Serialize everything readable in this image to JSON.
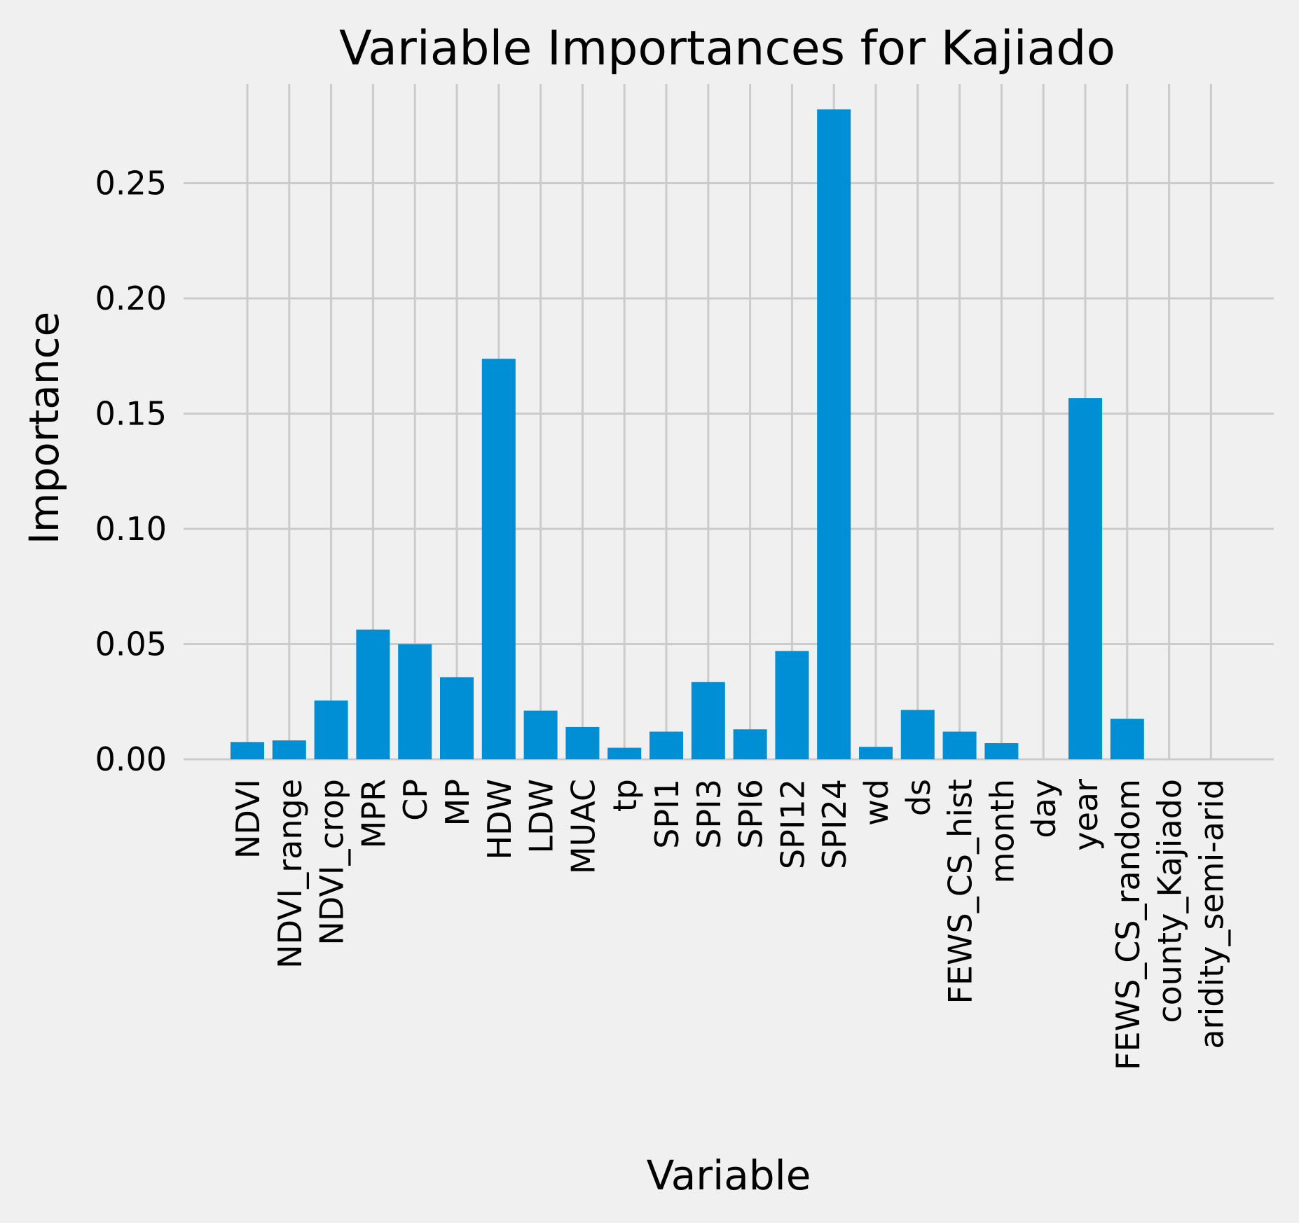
{
  "chart_data": {
    "type": "bar",
    "title": "Variable Importances for Kajiado",
    "xlabel": "Variable",
    "ylabel": "Importance",
    "categories": [
      "NDVI",
      "NDVI_range",
      "NDVI_crop",
      "MPR",
      "CP",
      "MP",
      "HDW",
      "LDW",
      "MUAC",
      "tp",
      "SPI1",
      "SPI3",
      "SPI6",
      "SPI12",
      "SPI24",
      "wd",
      "ds",
      "FEWS_CS_hist",
      "month",
      "day",
      "year",
      "FEWS_CS_random",
      "county_Kajiado",
      "aridity_semi-arid"
    ],
    "values": [
      0.0075,
      0.0082,
      0.0255,
      0.0563,
      0.05,
      0.0356,
      0.1738,
      0.0211,
      0.014,
      0.005,
      0.012,
      0.0335,
      0.013,
      0.047,
      0.282,
      0.0054,
      0.0214,
      0.012,
      0.007,
      0.0,
      0.1568,
      0.0176,
      0.0,
      0.0
    ],
    "yticks": [
      "0.00",
      "0.05",
      "0.10",
      "0.15",
      "0.20",
      "0.25"
    ],
    "ylim": [
      0,
      0.2925
    ],
    "grid": true,
    "colors": {
      "bar": "#008fd5",
      "background": "#f0f0f0",
      "grid": "#cbcbcb"
    }
  }
}
